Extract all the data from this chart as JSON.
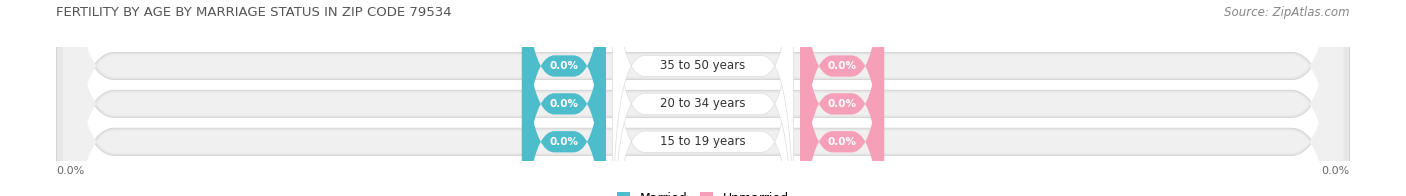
{
  "title": "FERTILITY BY AGE BY MARRIAGE STATUS IN ZIP CODE 79534",
  "source": "Source: ZipAtlas.com",
  "categories": [
    "15 to 19 years",
    "20 to 34 years",
    "35 to 50 years"
  ],
  "married_values": [
    0.0,
    0.0,
    0.0
  ],
  "unmarried_values": [
    0.0,
    0.0,
    0.0
  ],
  "married_color": "#4dbdcc",
  "unmarried_color": "#f5a0b8",
  "bar_bg_color": "#e6e6e6",
  "bar_inner_color": "#f0f0f0",
  "title_color": "#555555",
  "source_color": "#888888",
  "label_color": "#333333",
  "value_text_color": "#ffffff",
  "axis_tick_color": "#666666",
  "title_fontsize": 9.5,
  "source_fontsize": 8.5,
  "badge_fontsize": 7.5,
  "cat_fontsize": 8.5,
  "legend_fontsize": 9,
  "tick_fontsize": 8,
  "axis_label_left": "0.0%",
  "axis_label_right": "0.0%"
}
